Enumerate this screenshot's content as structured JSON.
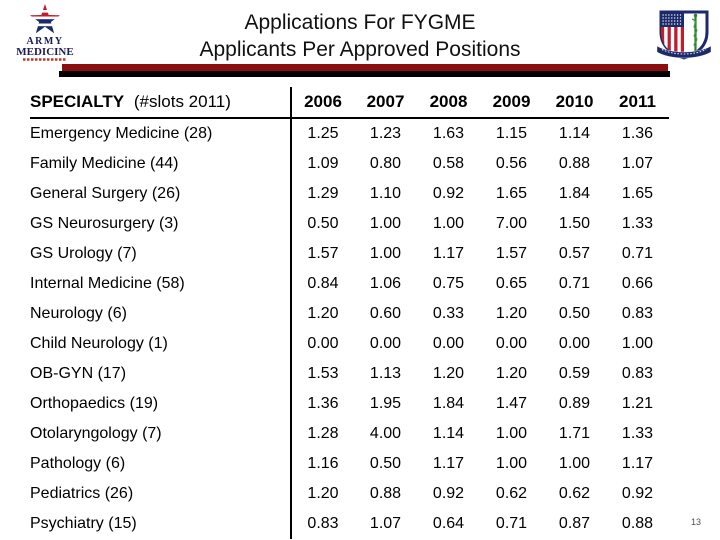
{
  "slide": {
    "title_line1": "Applications For FYGME",
    "title_line2": "Applicants Per Approved Positions",
    "page_number": "13"
  },
  "logos": {
    "army_medicine": {
      "line1": "ARMY",
      "line2": "MEDICINE"
    }
  },
  "colors": {
    "bar_red": "#8b0f0f",
    "bar_black": "#000000",
    "navy": "#1b2a6b",
    "flag_red": "#bf1e2e",
    "staff_green": "#2e7d32",
    "text": "#000000"
  },
  "table": {
    "header": {
      "specialty_label": "SPECIALTY",
      "specialty_note": "(#slots 2011)",
      "years": [
        "2006",
        "2007",
        "2008",
        "2009",
        "2010",
        "2011"
      ]
    },
    "rows": [
      {
        "specialty": "Emergency Medicine (28)",
        "values": [
          "1.25",
          "1.23",
          "1.63",
          "1.15",
          "1.14",
          "1.36"
        ]
      },
      {
        "specialty": "Family Medicine (44)",
        "values": [
          "1.09",
          "0.80",
          "0.58",
          "0.56",
          "0.88",
          "1.07"
        ]
      },
      {
        "specialty": "General Surgery (26)",
        "values": [
          "1.29",
          "1.10",
          "0.92",
          "1.65",
          "1.84",
          "1.65"
        ]
      },
      {
        "specialty": "GS Neurosurgery (3)",
        "values": [
          "0.50",
          "1.00",
          "1.00",
          "7.00",
          "1.50",
          "1.33"
        ]
      },
      {
        "specialty": "GS Urology (7)",
        "values": [
          "1.57",
          "1.00",
          "1.17",
          "1.57",
          "0.57",
          "0.71"
        ]
      },
      {
        "specialty": "Internal Medicine (58)",
        "values": [
          "0.84",
          "1.06",
          "0.75",
          "0.65",
          "0.71",
          "0.66"
        ]
      },
      {
        "specialty": "Neurology (6)",
        "values": [
          "1.20",
          "0.60",
          "0.33",
          "1.20",
          "0.50",
          "0.83"
        ]
      },
      {
        "specialty": "Child Neurology (1)",
        "values": [
          "0.00",
          "0.00",
          "0.00",
          "0.00",
          "0.00",
          "1.00"
        ]
      },
      {
        "specialty": "OB-GYN (17)",
        "values": [
          "1.53",
          "1.13",
          "1.20",
          "1.20",
          "0.59",
          "0.83"
        ]
      },
      {
        "specialty": "Orthopaedics (19)",
        "values": [
          "1.36",
          "1.95",
          "1.84",
          "1.47",
          "0.89",
          "1.21"
        ]
      },
      {
        "specialty": "Otolaryngology (7)",
        "values": [
          "1.28",
          "4.00",
          "1.14",
          "1.00",
          "1.71",
          "1.33"
        ]
      },
      {
        "specialty": "Pathology (6)",
        "values": [
          "1.16",
          "0.50",
          "1.17",
          "1.00",
          "1.00",
          "1.17"
        ]
      },
      {
        "specialty": "Pediatrics (26)",
        "values": [
          "1.20",
          "0.88",
          "0.92",
          "0.62",
          "0.62",
          "0.92"
        ]
      },
      {
        "specialty": "Psychiatry (15)",
        "values": [
          "0.83",
          "1.07",
          "0.64",
          "0.71",
          "0.87",
          "0.88"
        ]
      }
    ]
  }
}
